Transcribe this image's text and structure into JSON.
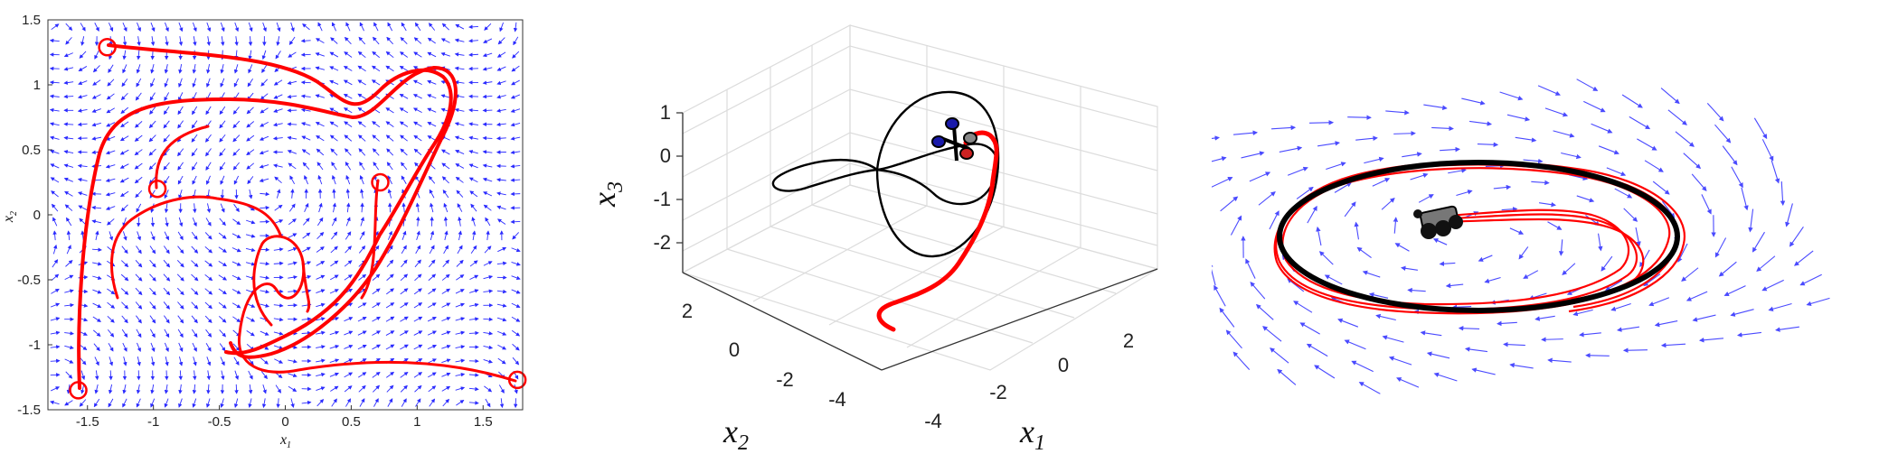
{
  "chart_data": [
    {
      "type": "vector-field",
      "xlabel": "x",
      "xlabel_sub": "1",
      "ylabel": "x",
      "ylabel_sub": "2",
      "xlim": [
        -1.8,
        1.8
      ],
      "ylim": [
        -1.5,
        1.5
      ],
      "x_ticks": [
        "-1.5",
        "-1",
        "-0.5",
        "0",
        "0.5",
        "1",
        "1.5"
      ],
      "y_ticks": [
        "1.5",
        "1",
        "0.5",
        "0",
        "-0.5",
        "-1",
        "-1.5"
      ],
      "start_points": [
        [
          -1.35,
          1.29
        ],
        [
          -0.97,
          0.2
        ],
        [
          0.72,
          0.25
        ],
        [
          -1.57,
          -1.35
        ],
        [
          1.76,
          -1.27
        ]
      ],
      "colors": {
        "arrows": "#2b2bff",
        "trajectory": "#ff0000"
      }
    },
    {
      "type": "3d-line",
      "xlabel": "x",
      "xlabel_sub": "1",
      "ylabel": "x",
      "ylabel_sub": "2",
      "zlabel": "x",
      "zlabel_sub": "3",
      "x_ticks": [
        "-4",
        "-2",
        "0",
        "2"
      ],
      "y_ticks": [
        "2",
        "0",
        "-2",
        "-4"
      ],
      "z_ticks": [
        "1",
        "0",
        "-1",
        "-2"
      ],
      "colors": {
        "reference": "#000000",
        "trajectory": "#ff0000"
      }
    },
    {
      "type": "vector-field",
      "colors": {
        "arrows": "#4a4aff",
        "reference": "#000000",
        "trajectory": "#ff0000"
      }
    }
  ]
}
